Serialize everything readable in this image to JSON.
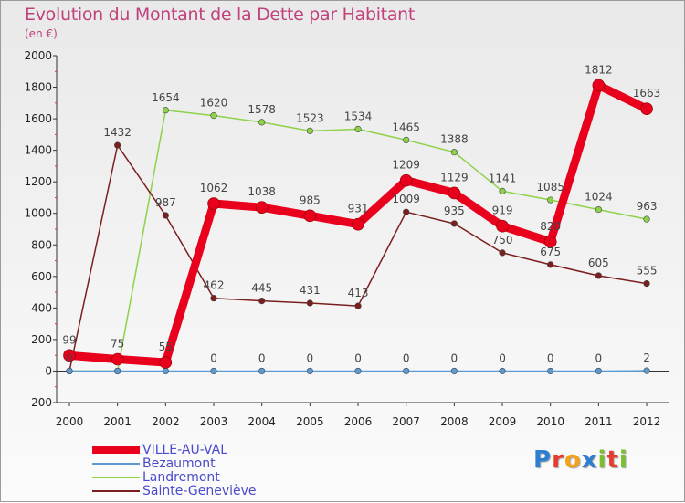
{
  "chart_data": {
    "type": "line",
    "title": "Evolution du Montant de la Dette par Habitant",
    "subtitle": "(en €)",
    "xlabel": "",
    "ylabel": "",
    "x": [
      "2000",
      "2001",
      "2002",
      "2003",
      "2004",
      "2005",
      "2006",
      "2007",
      "2008",
      "2009",
      "2010",
      "2011",
      "2012"
    ],
    "ylim": [
      -200,
      2000
    ],
    "yticks": [
      -200,
      0,
      200,
      400,
      600,
      800,
      1000,
      1200,
      1400,
      1600,
      1800,
      2000
    ],
    "grid": false,
    "legend_position": "bottom-left",
    "series": [
      {
        "name": "VILLE-AU-VAL",
        "color": "#e8001c",
        "values": [
          99,
          75,
          55,
          1062,
          1038,
          985,
          931,
          1209,
          1129,
          919,
          820,
          1812,
          1663
        ],
        "labels": [
          "99",
          "75",
          "55",
          "1062",
          "1038",
          "985",
          "931",
          "1209",
          "1129",
          "919",
          "820",
          "1812",
          "1663"
        ]
      },
      {
        "name": "Bezaumont",
        "color": "#5b9bd5",
        "values": [
          0,
          0,
          0,
          0,
          0,
          0,
          0,
          0,
          0,
          0,
          0,
          0,
          2
        ],
        "labels": [
          "0",
          "",
          "",
          "0",
          "0",
          "0",
          "0",
          "0",
          "0",
          "0",
          "0",
          "0",
          "2"
        ]
      },
      {
        "name": "Landremont",
        "color": "#8ed14a",
        "values": [
          0,
          0,
          1654,
          1620,
          1578,
          1523,
          1534,
          1465,
          1388,
          1141,
          1085,
          1024,
          963
        ],
        "labels": [
          "",
          "",
          "1654",
          "1620",
          "1578",
          "1523",
          "1534",
          "1465",
          "1388",
          "1141",
          "1085",
          "1024",
          "963"
        ]
      },
      {
        "name": "Sainte-Geneviève",
        "color": "#7b1e1e",
        "values": [
          0,
          1432,
          987,
          462,
          445,
          431,
          413,
          1009,
          935,
          750,
          675,
          605,
          555
        ],
        "labels": [
          "",
          "1432",
          "987",
          "462",
          "445",
          "431",
          "413",
          "1009",
          "935",
          "750",
          "675",
          "605",
          "555"
        ]
      }
    ]
  },
  "logo": {
    "letters": [
      "P",
      "r",
      "o",
      "x",
      "i",
      "t",
      "i"
    ],
    "colors": [
      "#2f7fd0",
      "#e63b2e",
      "#f2a21c",
      "#2f7fd0",
      "#7bbf2f",
      "#e63b2e",
      "#7bbf2f"
    ]
  }
}
